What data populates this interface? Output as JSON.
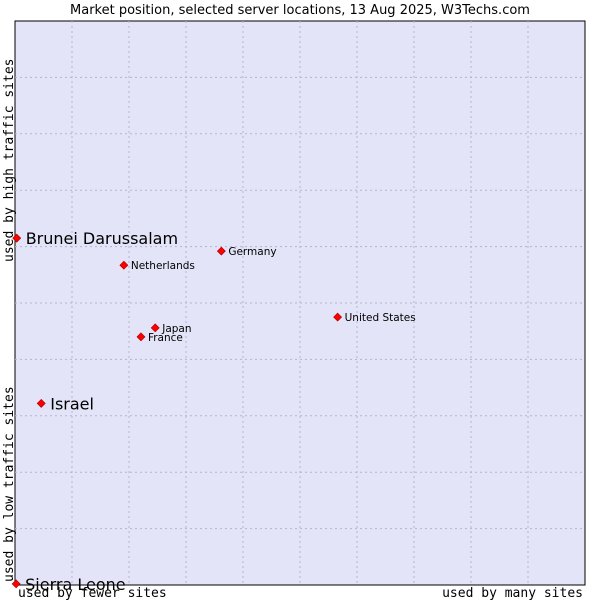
{
  "chart_data": {
    "type": "scatter",
    "title": "Market position, selected server locations, 13 Aug 2025, W3Techs.com",
    "xlabel_left": "used by fewer sites",
    "xlabel_right": "used by many sites",
    "ylabel_bottom": "used by low traffic sites",
    "ylabel_top": "used by high traffic sites",
    "xlim": [
      0,
      100
    ],
    "ylim": [
      0,
      100
    ],
    "grid": true,
    "points": [
      {
        "label": "Brunei Darussalam",
        "x": 0.3,
        "y": 61.5,
        "emphasis": true
      },
      {
        "label": "Israel",
        "x": 4.6,
        "y": 32.2,
        "emphasis": true
      },
      {
        "label": "Sierra Leone",
        "x": 0.2,
        "y": 0.2,
        "emphasis": true
      },
      {
        "label": "Germany",
        "x": 36.2,
        "y": 59.2,
        "emphasis": false
      },
      {
        "label": "Netherlands",
        "x": 19.1,
        "y": 56.7,
        "emphasis": false
      },
      {
        "label": "United States",
        "x": 56.6,
        "y": 47.5,
        "emphasis": false
      },
      {
        "label": "Japan",
        "x": 24.6,
        "y": 45.6,
        "emphasis": false
      },
      {
        "label": "France",
        "x": 22.1,
        "y": 44.0,
        "emphasis": false
      }
    ]
  },
  "colors": {
    "plot_bg": "#e4e4f8",
    "grid": "#b4b4d0",
    "axis": "#000000",
    "marker": "#ff0000"
  }
}
